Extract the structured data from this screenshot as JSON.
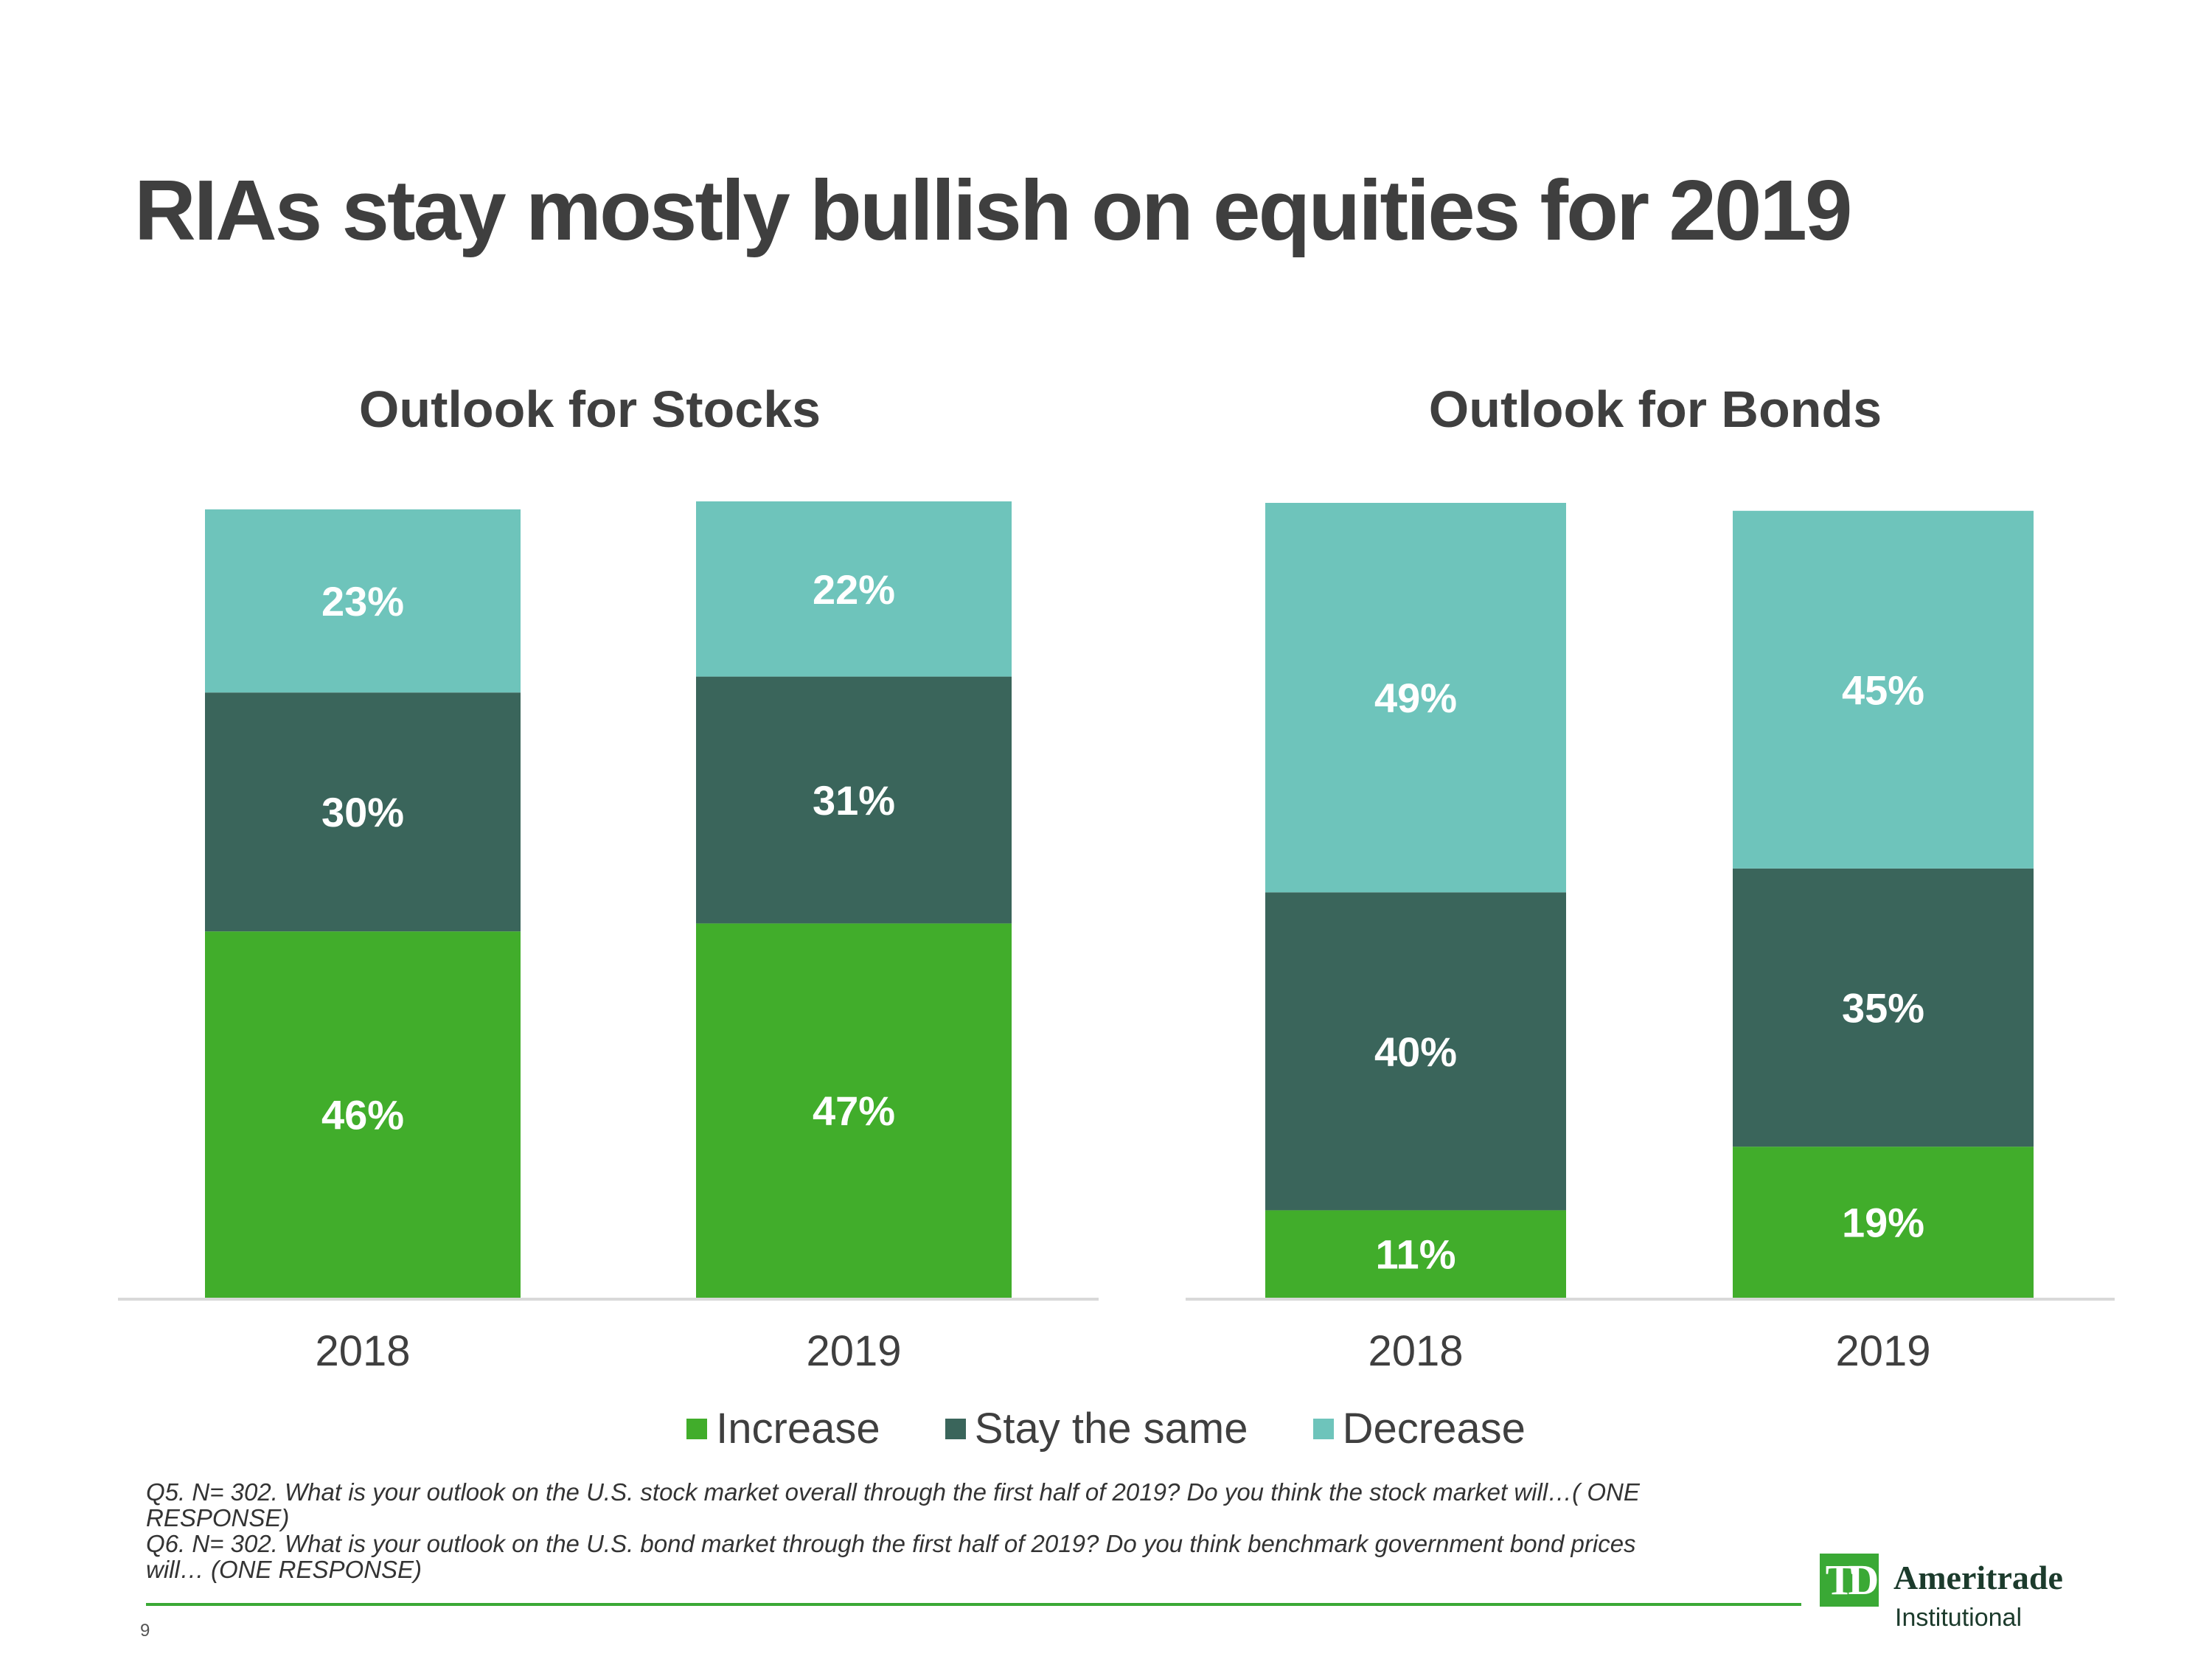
{
  "title": "RIAs stay mostly bullish on equities for 2019",
  "colors": {
    "increase": "#41ad2b",
    "stay": "#3a655b",
    "decrease": "#6ec4bb",
    "label": "#ffffff",
    "axis": "#d9d9d9",
    "rule": "#3aa935"
  },
  "chart_data": [
    {
      "type": "bar",
      "stacked": true,
      "title": "Outlook for Stocks",
      "categories": [
        "2018",
        "2019"
      ],
      "series": [
        {
          "name": "Increase",
          "values": [
            46,
            47
          ]
        },
        {
          "name": "Stay the same",
          "values": [
            30,
            31
          ]
        },
        {
          "name": "Decrease",
          "values": [
            23,
            22
          ]
        }
      ],
      "labels": [
        [
          "46%",
          "47%"
        ],
        [
          "30%",
          "31%"
        ],
        [
          "23%",
          "22%"
        ]
      ],
      "ylim": [
        0,
        100
      ]
    },
    {
      "type": "bar",
      "stacked": true,
      "title": "Outlook for Bonds",
      "categories": [
        "2018",
        "2019"
      ],
      "series": [
        {
          "name": "Increase",
          "values": [
            11,
            19
          ]
        },
        {
          "name": "Stay the same",
          "values": [
            40,
            35
          ]
        },
        {
          "name": "Decrease",
          "values": [
            49,
            45
          ]
        }
      ],
      "labels": [
        [
          "11%",
          "19%"
        ],
        [
          "40%",
          "35%"
        ],
        [
          "49%",
          "45%"
        ]
      ],
      "ylim": [
        0,
        100
      ]
    }
  ],
  "legend": [
    {
      "label": "Increase",
      "color": "#41ad2b"
    },
    {
      "label": "Stay the same",
      "color": "#3a655b"
    },
    {
      "label": "Decrease",
      "color": "#6ec4bb"
    }
  ],
  "footnotes": [
    "Q5. N= 302. What is your outlook on the U.S. stock market overall through the first half of 2019? Do you think the stock market will…( ONE RESPONSE)",
    "Q6. N= 302. What is your outlook on the U.S. bond market through the first half of 2019? Do you think benchmark government bond prices will… (ONE RESPONSE)"
  ],
  "page_number": "9",
  "logo": {
    "mark": "TD",
    "name": "Ameritrade",
    "sub": "Institutional"
  }
}
